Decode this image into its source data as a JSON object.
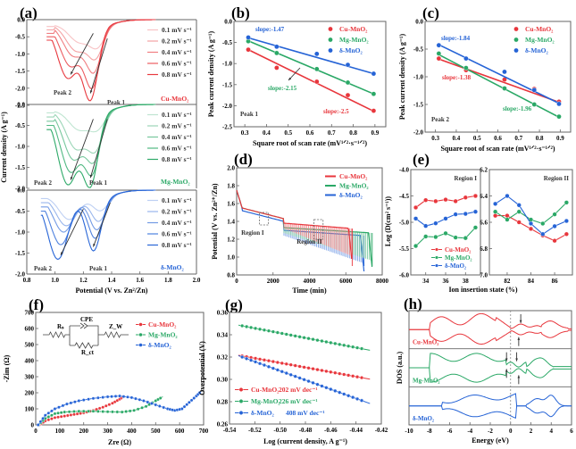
{
  "colors": {
    "cu": "#e8363c",
    "mg": "#2aa866",
    "delta": "#2563d6",
    "axis": "#555555",
    "arrow": "#333333"
  },
  "chart_data": [
    {
      "id": "a",
      "panel_label": "(a)",
      "type": "line",
      "title": "",
      "xlabel": "Potential (V vs. Zn²/Zn)",
      "ylabel": "Current density (A g⁻¹)",
      "xlim": [
        0.8,
        2.0
      ],
      "x_ticks": [
        "0.8",
        "1.0",
        "1.2",
        "1.4",
        "1.6",
        "1.8",
        "2.0"
      ],
      "subplots": [
        {
          "material": "Cu-MnO₂",
          "color_key": "cu",
          "ylim": [
            -2.5,
            0.0
          ],
          "y_ticks": [
            "0.0",
            "-0.5",
            "-1.0",
            "-1.5",
            "-2.0",
            "-2.5"
          ],
          "scan_rates": [
            "0.1 mV s⁻¹",
            "0.2 mV s⁻¹",
            "0.4 mV s⁻¹",
            "0.6 mV s⁻¹",
            "0.8 mV s⁻¹"
          ],
          "peak1_min": [
            -0.6,
            -0.9,
            -1.3,
            -1.75,
            -2.1
          ],
          "peak2_min": [
            -0.5,
            -0.75,
            -0.9,
            -1.2,
            -1.55
          ],
          "annotations": [
            "Peak 2",
            "Peak 1"
          ]
        },
        {
          "material": "Mg-MnO₂",
          "color_key": "mg",
          "ylim": [
            -2.0,
            0.0
          ],
          "y_ticks": [
            "0.0",
            "-0.5",
            "-1.0",
            "-1.5",
            "-2.0"
          ],
          "scan_rates": [
            "0.1 mV s⁻¹",
            "0.2 mV s⁻¹",
            "0.4 mV s⁻¹",
            "0.6 mV s⁻¹",
            "0.8 mV s⁻¹"
          ],
          "peak1_min": [
            -0.4,
            -0.85,
            -1.1,
            -1.4,
            -1.7
          ],
          "peak2_min": [
            -0.45,
            -0.9,
            -1.15,
            -1.45,
            -1.75
          ],
          "annotations": [
            "Peak 2",
            "Peak 1"
          ]
        },
        {
          "material": "δ-MnO₂",
          "color_key": "delta",
          "ylim": [
            -2.0,
            0.0
          ],
          "y_ticks": [
            "0.0",
            "-0.5",
            "-1.0",
            "-1.5",
            "-2.0"
          ],
          "scan_rates": [
            "0.1 mV s⁻¹",
            "0.2 mV s⁻¹",
            "0.4 mV s⁻¹",
            "0.6 mV s⁻¹",
            "0.8 mV s⁻¹"
          ],
          "peak1_min": [
            -0.35,
            -0.6,
            -0.8,
            -1.0,
            -1.3
          ],
          "peak2_min": [
            -0.55,
            -0.7,
            -0.85,
            -1.15,
            -1.5
          ],
          "annotations": [
            "Peak 2",
            "Peak 1"
          ]
        }
      ]
    },
    {
      "id": "b",
      "panel_label": "(b)",
      "type": "scatter",
      "xlabel": "Square root of scan rate (mV¹ᐟ²·s⁻¹ᐟ²)",
      "ylabel": "Peak current density (A g⁻¹)",
      "xlim": [
        0.25,
        0.95
      ],
      "ylim": [
        -2.5,
        0.0
      ],
      "x_ticks": [
        "0.3",
        "0.4",
        "0.5",
        "0.6",
        "0.7",
        "0.8",
        "0.9"
      ],
      "y_ticks": [
        "0.0",
        "-0.5",
        "-1.0",
        "-1.5",
        "-2.0",
        "-2.5"
      ],
      "x": [
        0.316,
        0.447,
        0.632,
        0.775,
        0.894
      ],
      "series": [
        {
          "name": "Cu-MnO₂",
          "color_key": "cu",
          "values": [
            -0.67,
            -1.1,
            -1.43,
            -1.75,
            -2.12
          ],
          "fit": [
            -0.67,
            -2.13
          ],
          "slope_label": "slope:-2.5"
        },
        {
          "name": "Mg-MnO₂",
          "color_key": "mg",
          "values": [
            -0.47,
            -0.75,
            -1.13,
            -1.45,
            -1.72
          ],
          "fit": [
            -0.46,
            -1.72
          ],
          "slope_label": "slope:-2.15"
        },
        {
          "name": "δ-MnO₂",
          "color_key": "delta",
          "values": [
            -0.38,
            -0.6,
            -0.77,
            -1.03,
            -1.24
          ],
          "fit": [
            -0.39,
            -1.24
          ],
          "slope_label": "slope:-1.47"
        }
      ],
      "annotation": "Peak 1",
      "legend": "top-right"
    },
    {
      "id": "c",
      "panel_label": "(c)",
      "type": "scatter",
      "xlabel": "Square root of scan rate (mV¹ᐟ²·s⁻¹ᐟ²)",
      "ylabel": "Peak current density (A g⁻¹)",
      "xlim": [
        0.25,
        0.95
      ],
      "ylim": [
        -2.0,
        0.0
      ],
      "x_ticks": [
        "0.3",
        "0.4",
        "0.5",
        "0.6",
        "0.7",
        "0.8",
        "0.9"
      ],
      "y_ticks": [
        "0.0",
        "-0.5",
        "-1.0",
        "-1.5",
        "-2.0"
      ],
      "x": [
        0.316,
        0.447,
        0.632,
        0.775,
        0.894
      ],
      "series": [
        {
          "name": "Cu-MnO₂",
          "color_key": "cu",
          "values": [
            -0.67,
            -0.88,
            -1.05,
            -1.22,
            -1.45
          ],
          "fit": [
            -0.68,
            -1.46
          ],
          "slope_label": "slope:-1.38"
        },
        {
          "name": "Mg-MnO₂",
          "color_key": "mg",
          "values": [
            -0.58,
            -0.84,
            -1.21,
            -1.5,
            -1.72
          ],
          "fit": [
            -0.6,
            -1.73
          ],
          "slope_label": "slope:-1.96"
        },
        {
          "name": "δ-MnO₂",
          "color_key": "delta",
          "values": [
            -0.43,
            -0.67,
            -0.91,
            -1.24,
            -1.49
          ],
          "fit": [
            -0.42,
            -1.48
          ],
          "slope_label": "slope:-1.84"
        }
      ],
      "annotation": "Peak 2",
      "legend": "top-right"
    },
    {
      "id": "d",
      "panel_label": "(d)",
      "type": "line",
      "xlabel": "Time (min)",
      "ylabel": "Potential (V vs. Zn²⁺/Zn)",
      "xlim": [
        0,
        8000
      ],
      "ylim": [
        0.8,
        2.0
      ],
      "x_ticks": [
        "0",
        "2000",
        "4000",
        "6000",
        "8000"
      ],
      "y_ticks": [
        "2.0",
        "1.8",
        "1.6",
        "1.4",
        "1.2",
        "1.0",
        "0.8"
      ],
      "series": [
        {
          "name": "Cu-MnO₂",
          "color_key": "cu",
          "end_time": 6350,
          "plateau": 1.38
        },
        {
          "name": "Mg-MnO₂",
          "color_key": "mg",
          "end_time": 7450,
          "plateau": 1.33
        },
        {
          "name": "δ-MnO₂",
          "color_key": "delta",
          "end_time": 7000,
          "plateau": 1.3
        }
      ],
      "annotations": [
        "Region I",
        "Region II"
      ],
      "legend": "top-right"
    },
    {
      "id": "e",
      "panel_label": "(e)",
      "type": "line",
      "xlabel": "Ion insertion state (%)",
      "ylabel": "Log (D(cm² s⁻¹))",
      "subplots": [
        {
          "title": "Region I",
          "xlim": [
            32.5,
            39.5
          ],
          "ylim": [
            -6.0,
            -4.0
          ],
          "x_ticks": [
            "34",
            "36",
            "38"
          ],
          "y_ticks": [
            "-4.0",
            "-4.5",
            "-5.0",
            "-5.5",
            "-6.0"
          ],
          "x": [
            33,
            34,
            35,
            36,
            37,
            38,
            39
          ],
          "series": [
            {
              "name": "Cu-MnO₂",
              "color_key": "cu",
              "values": [
                -4.72,
                -4.58,
                -4.6,
                -4.57,
                -4.6,
                -4.53,
                -4.5
              ]
            },
            {
              "name": "Mg-MnO₂",
              "color_key": "mg",
              "values": [
                -5.45,
                -5.27,
                -5.28,
                -5.21,
                -5.29,
                -5.3,
                -5.1
              ]
            },
            {
              "name": "δ-MnO₂",
              "color_key": "delta",
              "values": [
                -4.93,
                -5.07,
                -5.02,
                -4.93,
                -4.85,
                -4.84,
                -4.8
              ]
            }
          ]
        },
        {
          "title": "Region II",
          "xlim": [
            80.5,
            87.5
          ],
          "ylim": [
            -7.0,
            -6.2
          ],
          "x_ticks": [
            "82",
            "84",
            "86"
          ],
          "y_ticks": [
            "6.2",
            "6.4",
            "6.6",
            "6.8",
            "7.0"
          ],
          "x": [
            81,
            82,
            83,
            84,
            85,
            86,
            87
          ],
          "series": [
            {
              "name": "Cu-MnO₂",
              "color_key": "cu",
              "values": [
                -6.55,
                -6.55,
                -6.6,
                -6.65,
                -6.7,
                -6.74,
                -6.69
              ]
            },
            {
              "name": "Mg-MnO₂",
              "color_key": "mg",
              "values": [
                -6.52,
                -6.58,
                -6.52,
                -6.58,
                -6.61,
                -6.54,
                -6.45
              ]
            },
            {
              "name": "δ-MnO₂",
              "color_key": "delta",
              "values": [
                -6.46,
                -6.4,
                -6.47,
                -6.61,
                -6.69,
                -6.63,
                -6.59
              ]
            }
          ]
        }
      ],
      "legend": "bottom-left"
    },
    {
      "id": "f",
      "panel_label": "(f)",
      "type": "scatter",
      "xlabel": "Zre (Ω)",
      "ylabel": "-Zim (Ω)",
      "xlim": [
        0,
        700
      ],
      "ylim": [
        0,
        700
      ],
      "x_ticks": [
        "0",
        "100",
        "200",
        "300",
        "400",
        "500",
        "600",
        "700"
      ],
      "y_ticks": [
        "700",
        "600",
        "500",
        "400",
        "300",
        "200",
        "100",
        "0"
      ],
      "series": [
        {
          "name": "Cu-MnO₂",
          "color_key": "cu",
          "x": [
            15,
            40,
            80,
            120,
            160,
            200,
            240,
            280,
            320,
            350,
            370
          ],
          "y": [
            0,
            25,
            45,
            55,
            65,
            75,
            90,
            110,
            135,
            160,
            180
          ]
        },
        {
          "name": "Mg-MnO₂",
          "color_key": "mg",
          "x": [
            12,
            40,
            80,
            120,
            180,
            240,
            300,
            360,
            410,
            460,
            500,
            530
          ],
          "y": [
            0,
            40,
            70,
            80,
            85,
            85,
            82,
            80,
            90,
            115,
            150,
            175
          ]
        },
        {
          "name": "δ-MnO₂",
          "color_key": "delta",
          "x": [
            10,
            40,
            80,
            130,
            180,
            240,
            300,
            350,
            400,
            450,
            500,
            550,
            580,
            610,
            640,
            670,
            690
          ],
          "y": [
            0,
            60,
            100,
            130,
            150,
            165,
            175,
            180,
            170,
            150,
            125,
            100,
            90,
            100,
            140,
            180,
            210
          ]
        }
      ],
      "circuit_labels": [
        "Rₛ",
        "CPE",
        "Z_W",
        "R_ct"
      ],
      "legend": "top-right"
    },
    {
      "id": "g",
      "panel_label": "(g)",
      "type": "scatter",
      "xlabel": "Log  (current density, A g⁻¹)",
      "ylabel": "Overpotential (V)",
      "xlim": [
        -0.54,
        -0.42
      ],
      "ylim": [
        0.26,
        0.36
      ],
      "x_ticks": [
        "-0.54",
        "-0.52",
        "-0.50",
        "-0.48",
        "-0.46",
        "-0.44",
        "-0.42"
      ],
      "y_ticks": [
        "0.36",
        "0.34",
        "0.32",
        "0.30",
        "0.28",
        "0.26"
      ],
      "series": [
        {
          "name": "Cu-MnO₂",
          "color_key": "cu",
          "x_range": [
            -0.53,
            -0.433
          ],
          "y_range": [
            0.321,
            0.301
          ],
          "tafel": "202 mV dec⁻¹"
        },
        {
          "name": "Mg-MnO₂",
          "color_key": "mg",
          "x_range": [
            -0.53,
            -0.433
          ],
          "y_range": [
            0.348,
            0.327
          ],
          "tafel": "226 mV dec⁻¹"
        },
        {
          "name": "δ-MnO₂",
          "color_key": "delta",
          "x_range": [
            -0.53,
            -0.433
          ],
          "y_range": [
            0.32,
            0.28
          ],
          "tafel": "408 mV dec⁻¹"
        }
      ],
      "legend": "bottom-left"
    },
    {
      "id": "h",
      "panel_label": "(h)",
      "type": "line",
      "xlabel": "Energy (eV)",
      "ylabel": "DOS (a.u.)",
      "xlim": [
        -10,
        6
      ],
      "x_ticks": [
        "-10",
        "-8",
        "-6",
        "-4",
        "-2",
        "0",
        "2",
        "4",
        "6"
      ],
      "series": [
        {
          "name": "Cu-MnO₂",
          "color_key": "cu"
        },
        {
          "name": "Mg-MnO₂",
          "color_key": "mg"
        },
        {
          "name": "δ-MnO₂",
          "color_key": "delta"
        }
      ],
      "fermi_level": 0
    }
  ]
}
